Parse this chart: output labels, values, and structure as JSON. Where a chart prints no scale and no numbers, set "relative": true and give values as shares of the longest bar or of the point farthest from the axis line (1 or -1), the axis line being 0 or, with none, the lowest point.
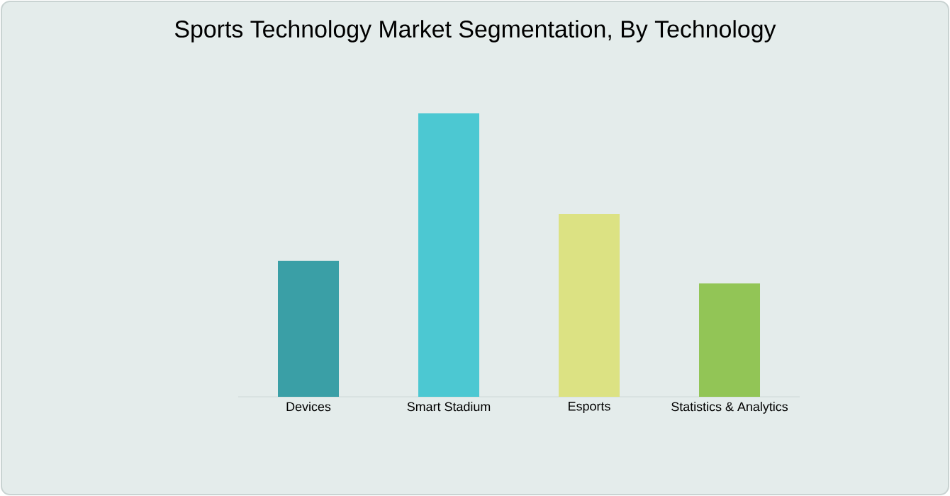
{
  "chart_data": {
    "type": "bar",
    "title": "Sports Technology Market Segmentation, By Technology",
    "categories": [
      "Devices",
      "Smart Stadium",
      "Esports",
      "Statistics & Analytics"
    ],
    "values": [
      0.48,
      1,
      0.645,
      0.4
    ],
    "colors": [
      "#3a9fa6",
      "#4cc8d2",
      "#dce283",
      "#92c556"
    ],
    "relative": true
  }
}
